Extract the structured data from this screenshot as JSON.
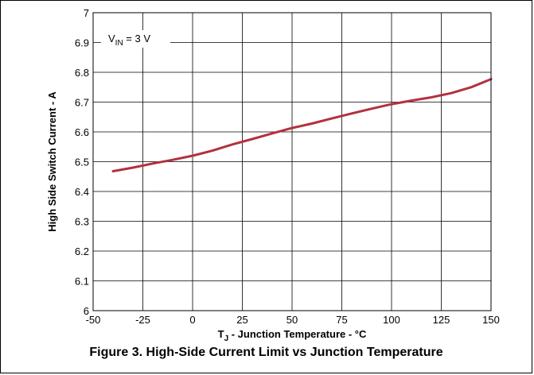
{
  "chart_data": {
    "type": "line",
    "xlabel_main": "T",
    "xlabel_sub": "J",
    "xlabel_rest": " - Junction Temperature - °C",
    "ylabel": "High Side Switch Current - A",
    "xlim": [
      -50,
      150
    ],
    "ylim": [
      6,
      7
    ],
    "x_ticks": [
      -50,
      -25,
      0,
      25,
      50,
      75,
      100,
      125,
      150
    ],
    "y_ticks": [
      6,
      6.1,
      6.2,
      6.3,
      6.4,
      6.5,
      6.6,
      6.7,
      6.8,
      6.9,
      7
    ],
    "grid": true,
    "annotation": {
      "main": "V",
      "sub": "IN",
      "rest": " = 3 V"
    },
    "series": [
      {
        "color": "#b3313f",
        "x": [
          -40,
          -30,
          -20,
          -10,
          0,
          10,
          20,
          30,
          40,
          50,
          60,
          70,
          80,
          90,
          100,
          110,
          120,
          130,
          140,
          150
        ],
        "y": [
          6.468,
          6.48,
          6.494,
          6.506,
          6.52,
          6.537,
          6.558,
          6.576,
          6.595,
          6.613,
          6.628,
          6.645,
          6.662,
          6.678,
          6.693,
          6.705,
          6.716,
          6.73,
          6.75,
          6.777
        ]
      }
    ]
  },
  "caption": "Figure 3. High-Side Current Limit vs Junction Temperature"
}
